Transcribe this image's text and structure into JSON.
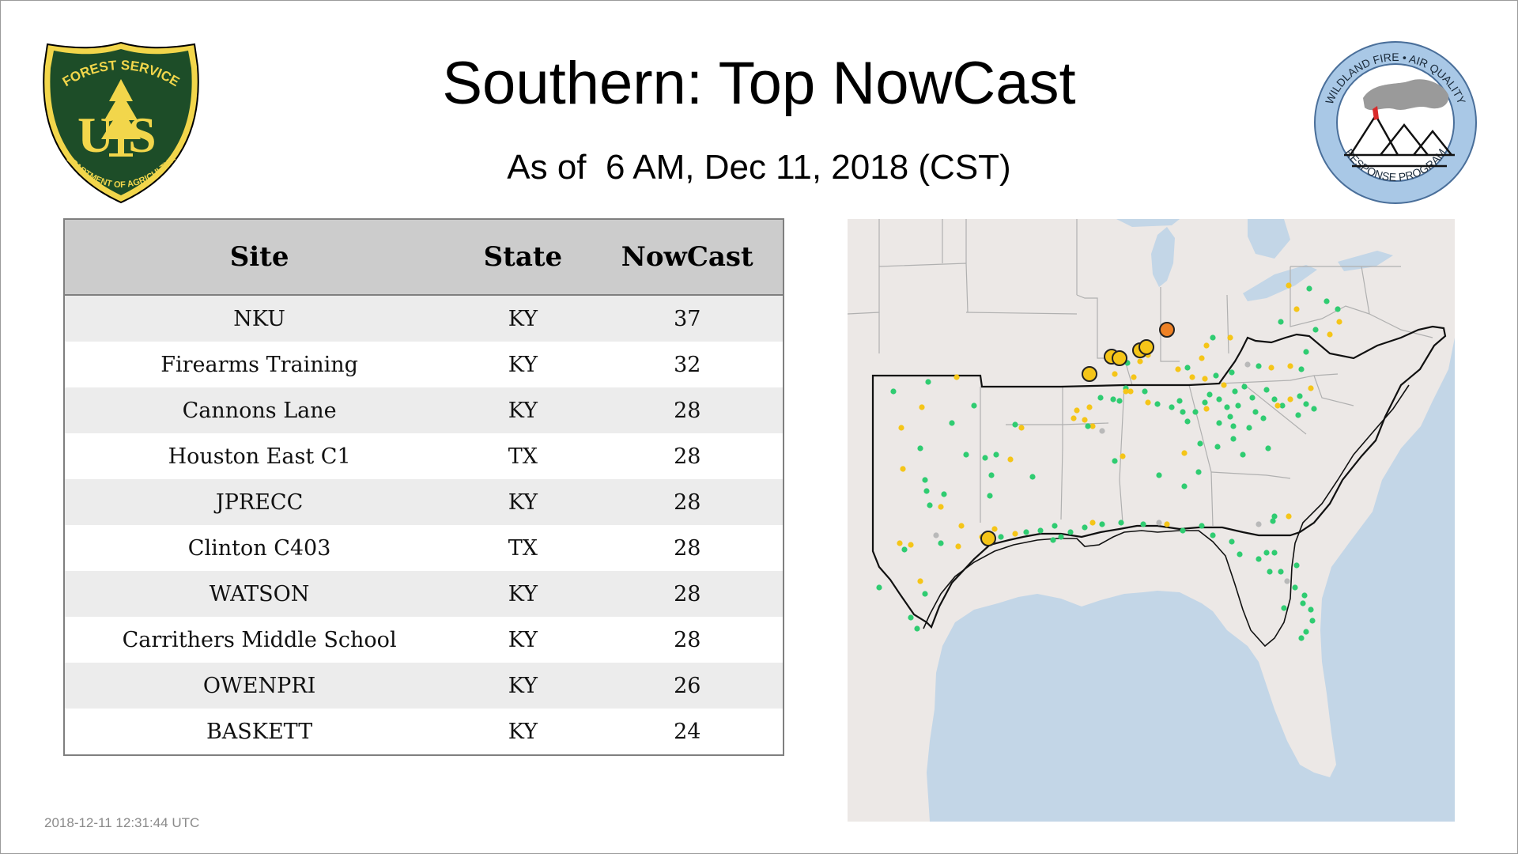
{
  "header": {
    "title": "Southern: Top NowCast",
    "subtitle": "As of  6 AM, Dec 11, 2018 (CST)"
  },
  "logos": {
    "forest_service": {
      "top_text": "FOREST SERVICE",
      "left_letter": "U",
      "right_letter": "S",
      "bottom_text": "DEPARTMENT OF AGRICULTURE",
      "colors": {
        "shield": "#1d4d28",
        "gold": "#f2d64b"
      }
    },
    "wildland": {
      "top_text": "WILDLAND FIRE • AIR QUALITY",
      "bottom_text": "RESPONSE PROGRAM",
      "colors": {
        "ring": "#a9c8e6",
        "border": "#4a6f9a"
      }
    }
  },
  "table": {
    "headers": {
      "site": "Site",
      "state": "State",
      "nowcast": "NowCast"
    },
    "rows": [
      {
        "site": "NKU",
        "state": "KY",
        "nowcast": "37"
      },
      {
        "site": "Firearms Training",
        "state": "KY",
        "nowcast": "32"
      },
      {
        "site": "Cannons Lane",
        "state": "KY",
        "nowcast": "28"
      },
      {
        "site": "Houston East C1",
        "state": "TX",
        "nowcast": "28"
      },
      {
        "site": "JPRECC",
        "state": "KY",
        "nowcast": "28"
      },
      {
        "site": "Clinton C403",
        "state": "TX",
        "nowcast": "28"
      },
      {
        "site": "WATSON",
        "state": "KY",
        "nowcast": "28"
      },
      {
        "site": "Carrithers Middle School",
        "state": "KY",
        "nowcast": "28"
      },
      {
        "site": "OWENPRI",
        "state": "KY",
        "nowcast": "26"
      },
      {
        "site": "BASKETT",
        "state": "KY",
        "nowcast": "24"
      }
    ]
  },
  "map": {
    "colors": {
      "land": "#ece8e6",
      "water": "#c3d6e7",
      "good": "#2fcc71",
      "moderate": "#f5c518",
      "usg": "#ee8125",
      "no_data": "#b9b9b9",
      "marker_outline": "#222222"
    }
  },
  "footer": {
    "timestamp": "2018-12-11 12:31:44 UTC"
  }
}
